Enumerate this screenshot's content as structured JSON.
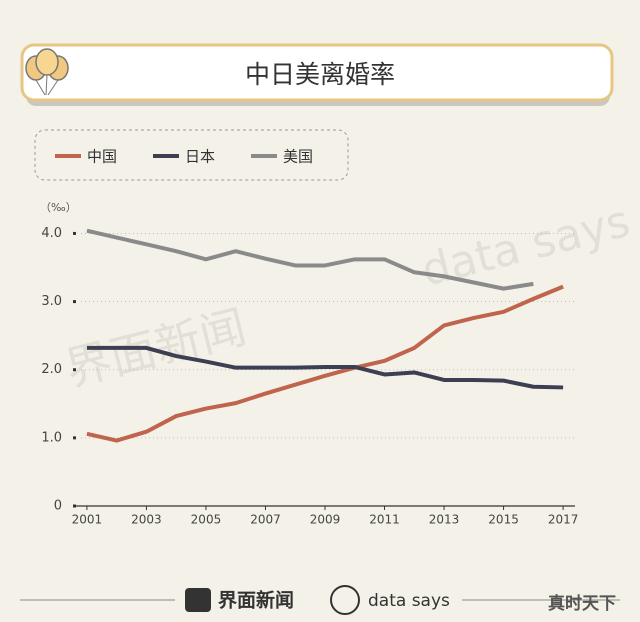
{
  "chart_data": {
    "type": "line",
    "title": "中日美离婚率",
    "y_unit": "（‰）",
    "x": [
      2001,
      2002,
      2003,
      2004,
      2005,
      2006,
      2007,
      2008,
      2009,
      2010,
      2011,
      2012,
      2013,
      2014,
      2015,
      2016,
      2017
    ],
    "series": [
      {
        "name": "中国",
        "color": "#c0644d",
        "values": [
          1.06,
          0.96,
          1.09,
          1.32,
          1.43,
          1.51,
          1.65,
          1.78,
          1.91,
          2.03,
          2.13,
          2.32,
          2.65,
          2.76,
          2.85,
          3.04,
          3.22
        ]
      },
      {
        "name": "日本",
        "color": "#3c3f52",
        "values": [
          2.32,
          2.32,
          2.32,
          2.2,
          2.12,
          2.03,
          2.03,
          2.03,
          2.04,
          2.04,
          1.93,
          1.96,
          1.85,
          1.85,
          1.84,
          1.75,
          1.74
        ]
      },
      {
        "name": "美国",
        "color": "#8a8a8a",
        "values": [
          4.04,
          3.94,
          3.84,
          3.74,
          3.62,
          3.74,
          3.63,
          3.53,
          3.53,
          3.62,
          3.62,
          3.43,
          3.37,
          3.28,
          3.19,
          3.26,
          null
        ]
      }
    ],
    "xlim": [
      2000.6,
      2017.4
    ],
    "xticks": [
      2001,
      2003,
      2005,
      2007,
      2009,
      2011,
      2013,
      2015,
      2017
    ],
    "ylim": [
      0,
      4.3
    ],
    "yticks": [
      0,
      {
        "value": 1,
        "label": "1.0"
      },
      {
        "value": 2,
        "label": "2.0"
      },
      {
        "value": 3,
        "label": "3.0"
      },
      {
        "value": 4,
        "label": "4.0"
      }
    ],
    "grid": true,
    "legend": "top-left",
    "watermarks": [
      "界面新闻",
      "data says"
    ],
    "footer": {
      "brand": "界面新闻",
      "partner": "data says",
      "source_mark": "真时天下"
    }
  }
}
